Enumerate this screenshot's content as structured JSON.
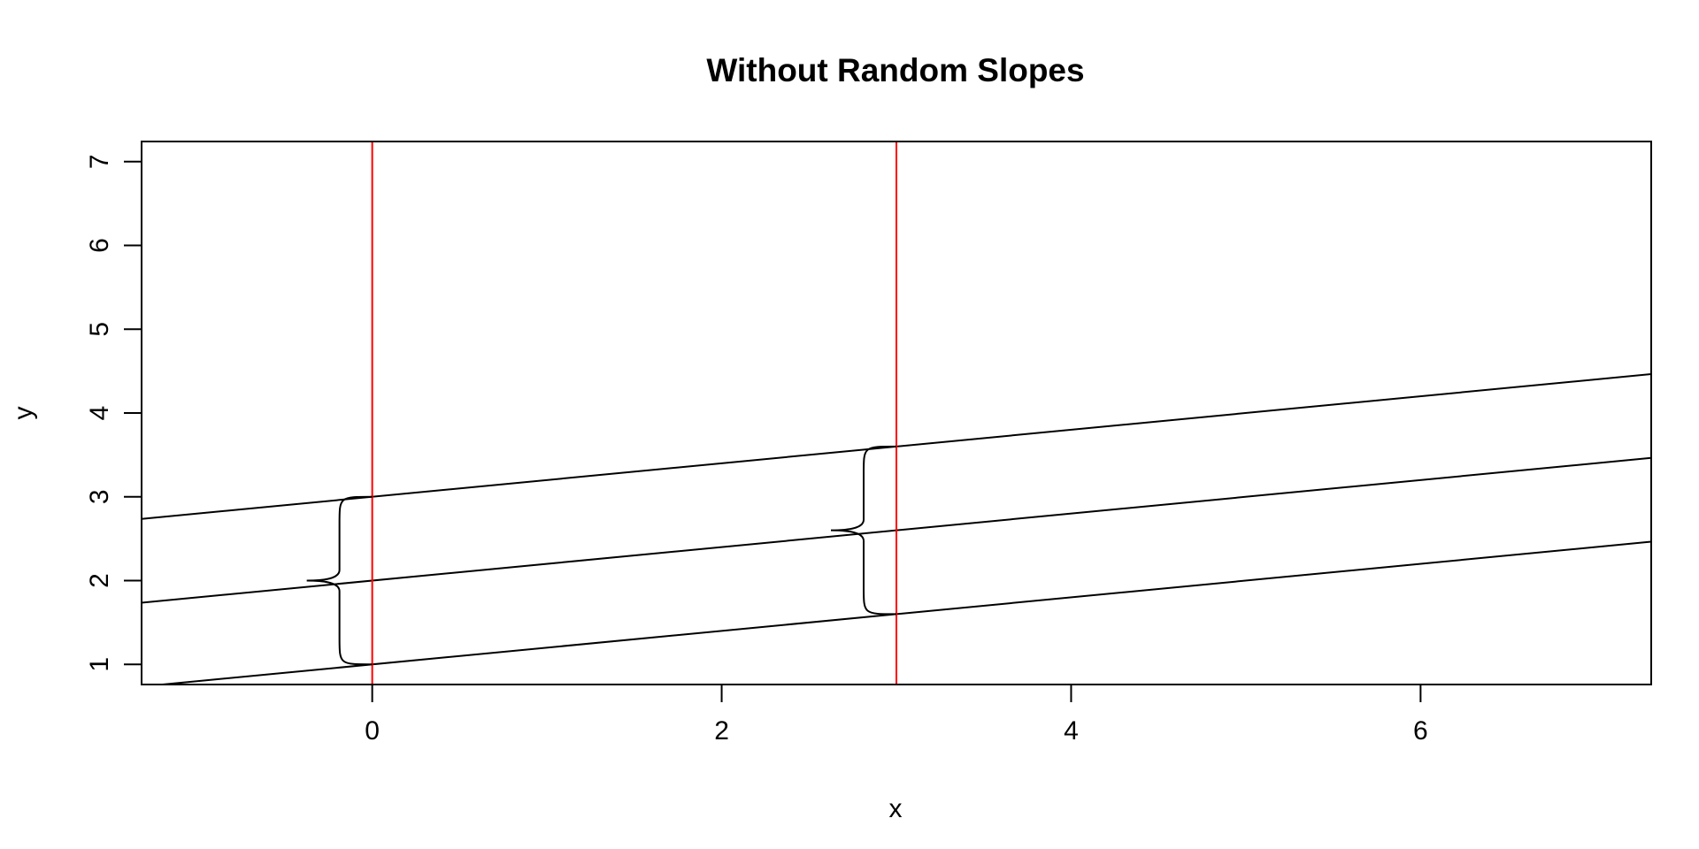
{
  "chart_data": {
    "type": "line",
    "title": "Without Random Slopes",
    "xlabel": "x",
    "ylabel": "y",
    "xlim": [
      -1.32,
      7.32
    ],
    "ylim": [
      0.76,
      7.24
    ],
    "x_ticks": [
      0,
      2,
      4,
      6
    ],
    "y_ticks": [
      1,
      2,
      3,
      4,
      5,
      6,
      7
    ],
    "grid": false,
    "legend": "none",
    "series": [
      {
        "intercept": 3,
        "slope": 0.2,
        "color": "#000000"
      },
      {
        "intercept": 2,
        "slope": 0.2,
        "color": "#000000"
      },
      {
        "intercept": 1,
        "slope": 0.2,
        "color": "#000000"
      }
    ],
    "vlines": [
      {
        "x": 0,
        "color": "#ff0000"
      },
      {
        "x": 3,
        "color": "#ff0000"
      }
    ],
    "braces": [
      {
        "x": 0,
        "y_low": 1.0,
        "y_mid": 2.0,
        "y_high": 3.0
      },
      {
        "x": 3,
        "y_low": 1.6,
        "y_mid": 2.6,
        "y_high": 3.6
      }
    ]
  }
}
